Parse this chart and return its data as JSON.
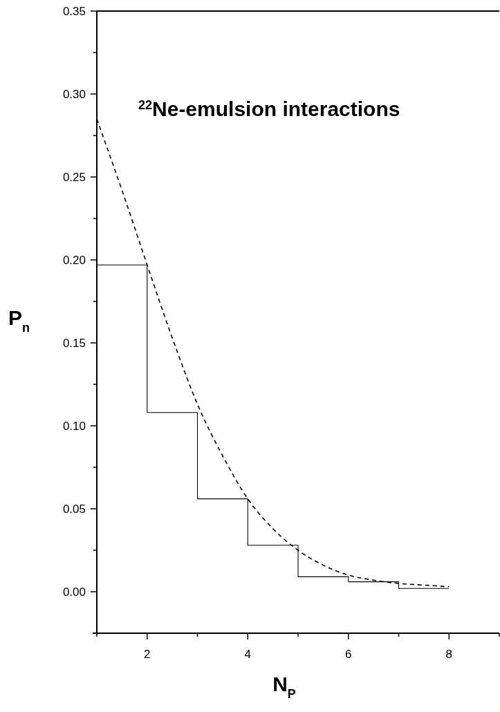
{
  "chart_data": {
    "type": "step",
    "xlabel": "N$_{P}$",
    "ylabel": "P$_{n}$",
    "annotations": [
      "$^{22}$Ne-emulsion interactions"
    ],
    "xlim": [
      1,
      9
    ],
    "xticks": [
      {
        "value": 1,
        "label": null
      },
      2,
      {
        "value": 3,
        "label": null
      },
      4,
      {
        "value": 5,
        "label": null
      },
      6,
      {
        "value": 7,
        "label": null
      },
      8,
      {
        "value": 9,
        "label": null
      }
    ],
    "ylim": [
      -0.025,
      0.35
    ],
    "yticks": [
      {
        "value": -0.025,
        "label": null
      },
      {
        "value": 0,
        "label": "0.00"
      },
      {
        "value": 0.025,
        "label": null
      },
      0.05,
      {
        "value": 0.075,
        "label": null
      },
      {
        "value": 0.1,
        "label": "0.10"
      },
      {
        "value": 0.125,
        "label": null
      },
      0.15,
      {
        "value": 0.175,
        "label": null
      },
      {
        "value": 0.2,
        "label": "0.20"
      },
      {
        "value": 0.225,
        "label": null
      },
      0.25,
      {
        "value": 0.275,
        "label": null
      },
      {
        "value": 0.3,
        "label": "0.30"
      },
      {
        "value": 0.325,
        "label": null
      },
      0.35
    ],
    "series": [
      {
        "color": "#000000",
        "line_style": "solid",
        "x": [
          1,
          2,
          3,
          4,
          5,
          6,
          7,
          8
        ],
        "values": [
          0.197,
          0.108,
          0.056,
          0.028,
          0.009,
          0.006,
          0.002,
          0.002
        ]
      },
      {
        "type": "line",
        "color": "#000000",
        "line_style": "dashed",
        "x": [
          1,
          1.5,
          2,
          2.5,
          3,
          3.5,
          4,
          4.5,
          5,
          5.5,
          6,
          6.5,
          7,
          7.5,
          8
        ],
        "values": [
          0.285,
          0.242,
          0.197,
          0.153,
          0.113,
          0.082,
          0.056,
          0.038,
          0.025,
          0.016,
          0.01,
          0.007,
          0.005,
          0.004,
          0.003
        ]
      }
    ]
  }
}
